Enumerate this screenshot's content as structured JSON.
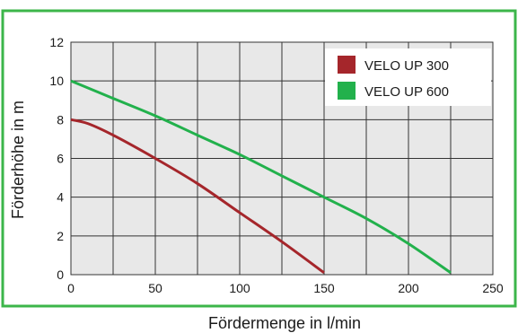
{
  "chart_data": {
    "type": "line",
    "title": "",
    "xlabel": "Fördermenge in l/min",
    "ylabel": "Förderhöhe in m",
    "xlim": [
      0,
      250
    ],
    "ylim": [
      0,
      12
    ],
    "x_ticks": [
      "0",
      "50",
      "100",
      "150",
      "200",
      "250"
    ],
    "y_ticks": [
      "0",
      "2",
      "4",
      "6",
      "8",
      "10",
      "12"
    ],
    "grid": true,
    "legend_position": "top-right",
    "series": [
      {
        "name": "VELO UP 300",
        "color": "#a5262b",
        "x": [
          0,
          10,
          25,
          50,
          75,
          100,
          125,
          150
        ],
        "y": [
          8.0,
          7.8,
          7.2,
          6.0,
          4.7,
          3.2,
          1.7,
          0.1
        ]
      },
      {
        "name": "VELO UP 600",
        "color": "#22b14c",
        "x": [
          0,
          25,
          50,
          75,
          100,
          125,
          150,
          175,
          200,
          225
        ],
        "y": [
          10.0,
          9.1,
          8.2,
          7.2,
          6.2,
          5.1,
          4.0,
          2.9,
          1.6,
          0.1
        ]
      }
    ],
    "frame_color": "#3cb64a",
    "plot_background": "#e8e8e8"
  }
}
